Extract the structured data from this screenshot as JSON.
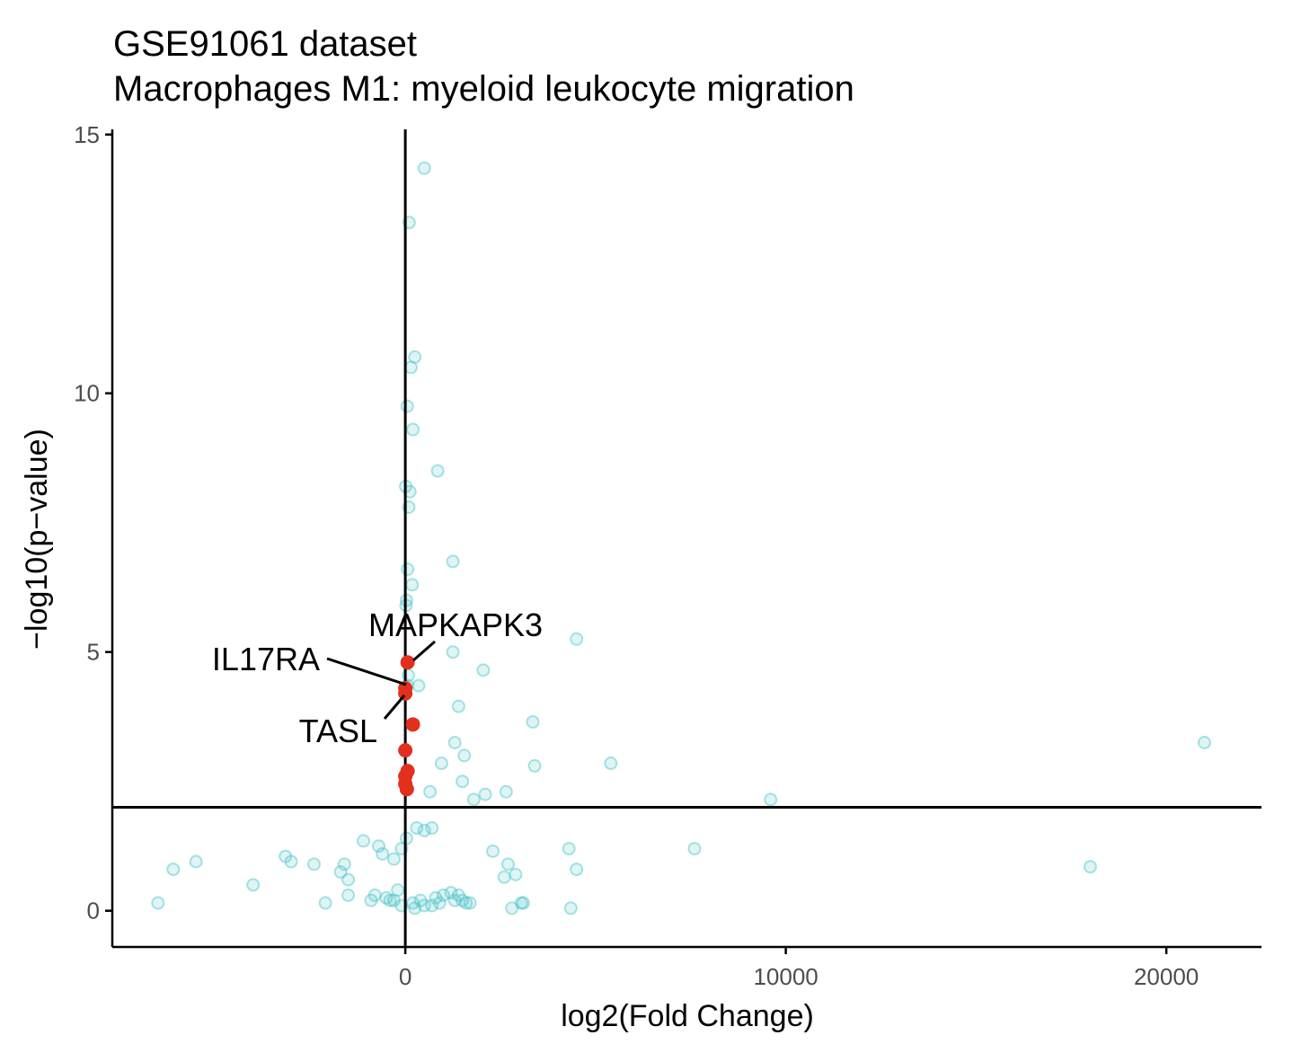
{
  "chart_data": {
    "type": "scatter",
    "title": "GSE91061 dataset",
    "subtitle": "Macrophages M1: myeloid leukocyte migration",
    "xlabel": "log2(Fold Change)",
    "ylabel": "−log10(p−value)",
    "xlim": [
      -7700,
      22500
    ],
    "ylim": [
      -0.7,
      15.1
    ],
    "x_ticks": [
      0,
      10000,
      20000
    ],
    "y_ticks": [
      0,
      5,
      10,
      15
    ],
    "x_tick_labels": [
      "0",
      "10000",
      "20000"
    ],
    "y_tick_labels": [
      "0",
      "5",
      "10",
      "15"
    ],
    "reference_lines": {
      "vertical_x": 0,
      "horizontal_y": 2
    },
    "grid": false,
    "colors": {
      "background_points": "#48c1c5",
      "highlighted_points": "#e3301e"
    },
    "background_points": {
      "x": [
        500,
        100,
        250,
        150,
        50,
        200,
        850,
        120,
        10,
        90,
        1250,
        60,
        180,
        30,
        20,
        4500,
        1250,
        2050,
        80,
        60,
        350,
        1400,
        3350,
        1300,
        1550,
        3400,
        5400,
        950,
        1500,
        650,
        2100,
        2650,
        1800,
        9600,
        300,
        700,
        -100,
        30,
        500,
        21000,
        -1100,
        -700,
        -600,
        -300,
        2300,
        4300,
        7600,
        -3150,
        -3000,
        -5500,
        -6100,
        -1600,
        -1500,
        -4000,
        -2400,
        -6500,
        -1700,
        -1500,
        -900,
        -400,
        200,
        400,
        800,
        1000,
        1200,
        1400,
        1500,
        1700,
        -200,
        2600,
        2900,
        3100,
        4500,
        2700,
        -2100,
        4350,
        18000,
        -800,
        -500,
        -300,
        -100,
        250,
        500,
        700,
        900,
        1300,
        1600,
        2800,
        3050
      ],
      "y": [
        14.35,
        13.3,
        10.7,
        10.5,
        9.75,
        9.3,
        8.5,
        8.1,
        8.2,
        7.8,
        6.75,
        6.6,
        6.3,
        6.0,
        5.9,
        5.25,
        5.0,
        4.65,
        4.55,
        4.35,
        4.35,
        3.95,
        3.65,
        3.25,
        3.0,
        2.8,
        2.85,
        2.85,
        2.5,
        2.3,
        2.25,
        2.3,
        2.15,
        2.15,
        1.6,
        1.6,
        1.2,
        1.4,
        1.55,
        3.25,
        1.35,
        1.25,
        1.1,
        1.0,
        1.15,
        1.2,
        1.2,
        1.05,
        0.95,
        0.95,
        0.8,
        0.9,
        0.6,
        0.5,
        0.9,
        0.15,
        0.75,
        0.3,
        0.2,
        0.2,
        0.15,
        0.2,
        0.25,
        0.3,
        0.35,
        0.3,
        0.2,
        0.15,
        0.4,
        0.65,
        0.7,
        0.15,
        0.8,
        0.9,
        0.15,
        0.05,
        0.85,
        0.3,
        0.25,
        0.2,
        0.1,
        0.05,
        0.1,
        0.1,
        0.15,
        0.2,
        0.15,
        0.05,
        0.15
      ]
    },
    "highlighted_points": {
      "x": [
        60,
        0,
        0,
        200,
        0,
        60,
        0,
        0,
        40
      ],
      "y": [
        4.8,
        4.3,
        4.2,
        3.6,
        3.1,
        2.7,
        2.6,
        2.45,
        2.35
      ]
    },
    "annotations": [
      {
        "text": "MAPKAPK3",
        "point": [
          60,
          4.8
        ]
      },
      {
        "text": "IL17RA",
        "point": [
          0,
          4.3
        ]
      },
      {
        "text": "TASL",
        "point": [
          0,
          4.2
        ]
      }
    ]
  }
}
